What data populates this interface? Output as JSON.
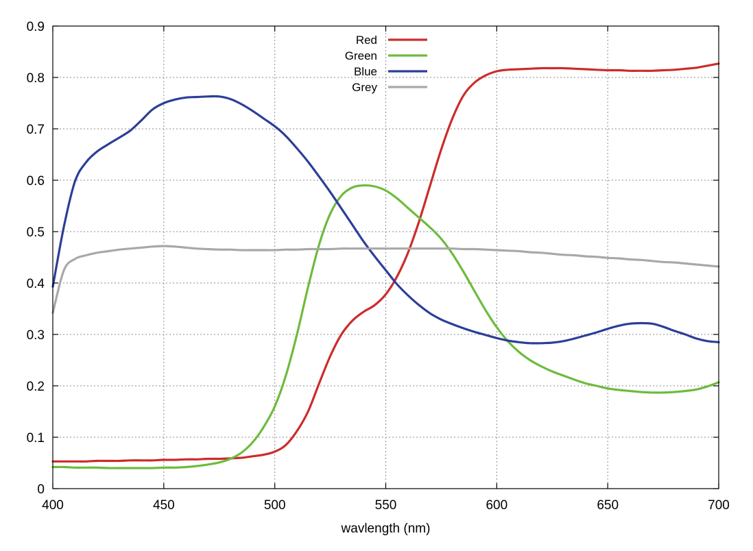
{
  "chart_data": {
    "type": "line",
    "title": "",
    "xlabel": "wavlength (nm)",
    "ylabel": "",
    "xlim": [
      400,
      700
    ],
    "ylim": [
      0,
      0.9
    ],
    "grid": true,
    "legend_position": "top-center",
    "x_ticks": [
      400,
      450,
      500,
      550,
      600,
      650,
      700
    ],
    "x_tick_labels": [
      "400",
      "450",
      "500",
      "550",
      "600",
      "650",
      "700"
    ],
    "y_ticks": [
      0,
      0.1,
      0.2,
      0.3,
      0.4,
      0.5,
      0.6,
      0.7,
      0.8,
      0.9
    ],
    "y_tick_labels": [
      "0",
      "0.1",
      "0.2",
      "0.3",
      "0.4",
      "0.5",
      "0.6",
      "0.7",
      "0.8",
      "0.9"
    ],
    "x": [
      400,
      405,
      410,
      415,
      420,
      425,
      430,
      435,
      440,
      445,
      450,
      455,
      460,
      465,
      470,
      475,
      480,
      485,
      490,
      495,
      500,
      505,
      510,
      515,
      520,
      525,
      530,
      535,
      540,
      545,
      550,
      555,
      560,
      565,
      570,
      575,
      580,
      585,
      590,
      595,
      600,
      605,
      610,
      615,
      620,
      625,
      630,
      635,
      640,
      645,
      650,
      655,
      660,
      665,
      670,
      675,
      680,
      685,
      690,
      695,
      700
    ],
    "series": [
      {
        "name": "Red",
        "color": "#cc2b2b",
        "values": [
          0.053,
          0.053,
          0.053,
          0.053,
          0.054,
          0.054,
          0.054,
          0.055,
          0.055,
          0.055,
          0.056,
          0.056,
          0.057,
          0.057,
          0.058,
          0.058,
          0.059,
          0.06,
          0.063,
          0.066,
          0.072,
          0.085,
          0.112,
          0.15,
          0.205,
          0.258,
          0.3,
          0.327,
          0.344,
          0.357,
          0.378,
          0.412,
          0.459,
          0.52,
          0.59,
          0.66,
          0.72,
          0.765,
          0.79,
          0.804,
          0.812,
          0.815,
          0.816,
          0.817,
          0.818,
          0.818,
          0.818,
          0.817,
          0.816,
          0.815,
          0.814,
          0.814,
          0.813,
          0.813,
          0.813,
          0.814,
          0.815,
          0.817,
          0.819,
          0.823,
          0.827
        ]
      },
      {
        "name": "Green",
        "color": "#6dbb3c",
        "values": [
          0.042,
          0.042,
          0.041,
          0.041,
          0.041,
          0.04,
          0.04,
          0.04,
          0.04,
          0.04,
          0.041,
          0.041,
          0.042,
          0.044,
          0.047,
          0.051,
          0.058,
          0.07,
          0.09,
          0.12,
          0.16,
          0.22,
          0.3,
          0.392,
          0.475,
          0.535,
          0.57,
          0.586,
          0.59,
          0.588,
          0.58,
          0.565,
          0.546,
          0.527,
          0.508,
          0.486,
          0.457,
          0.422,
          0.384,
          0.347,
          0.314,
          0.287,
          0.266,
          0.25,
          0.238,
          0.228,
          0.22,
          0.212,
          0.205,
          0.2,
          0.195,
          0.192,
          0.19,
          0.188,
          0.187,
          0.187,
          0.188,
          0.19,
          0.193,
          0.199,
          0.207
        ]
      },
      {
        "name": "Blue",
        "color": "#2b3e99",
        "values": [
          0.393,
          0.51,
          0.598,
          0.635,
          0.656,
          0.67,
          0.683,
          0.697,
          0.717,
          0.738,
          0.75,
          0.757,
          0.761,
          0.762,
          0.763,
          0.763,
          0.758,
          0.748,
          0.735,
          0.72,
          0.705,
          0.686,
          0.662,
          0.636,
          0.607,
          0.577,
          0.545,
          0.513,
          0.481,
          0.452,
          0.425,
          0.398,
          0.376,
          0.357,
          0.341,
          0.329,
          0.32,
          0.312,
          0.305,
          0.299,
          0.293,
          0.288,
          0.285,
          0.283,
          0.283,
          0.284,
          0.287,
          0.292,
          0.298,
          0.304,
          0.311,
          0.317,
          0.321,
          0.322,
          0.321,
          0.315,
          0.307,
          0.3,
          0.292,
          0.287,
          0.285
        ]
      },
      {
        "name": "Grey",
        "color": "#a8a8a8",
        "values": [
          0.342,
          0.425,
          0.447,
          0.454,
          0.459,
          0.462,
          0.465,
          0.467,
          0.469,
          0.471,
          0.472,
          0.471,
          0.469,
          0.467,
          0.466,
          0.465,
          0.465,
          0.464,
          0.464,
          0.464,
          0.464,
          0.465,
          0.465,
          0.466,
          0.466,
          0.466,
          0.467,
          0.467,
          0.467,
          0.467,
          0.467,
          0.467,
          0.467,
          0.467,
          0.467,
          0.467,
          0.467,
          0.466,
          0.466,
          0.465,
          0.464,
          0.463,
          0.462,
          0.46,
          0.459,
          0.457,
          0.455,
          0.454,
          0.452,
          0.451,
          0.449,
          0.448,
          0.446,
          0.445,
          0.443,
          0.441,
          0.44,
          0.438,
          0.436,
          0.434,
          0.432
        ]
      }
    ]
  }
}
